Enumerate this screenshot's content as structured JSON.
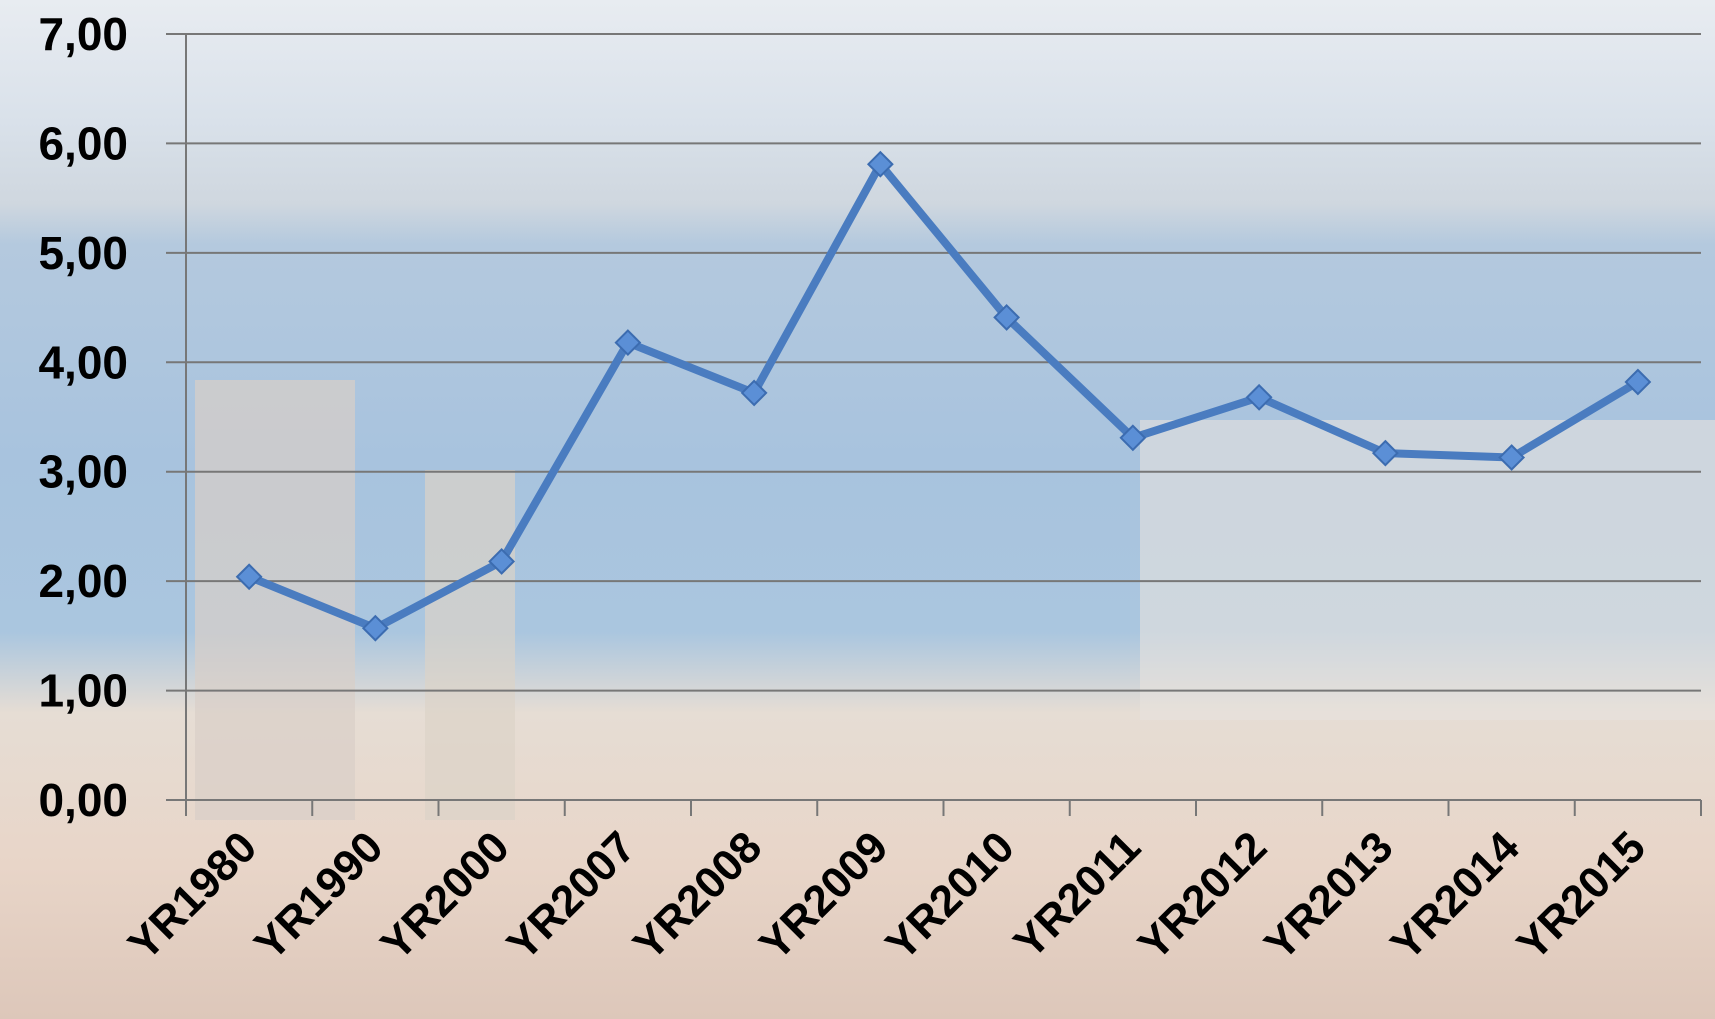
{
  "chart_data": {
    "type": "line",
    "categories": [
      "YR1980",
      "YR1990",
      "YR2000",
      "YR2007",
      "YR2008",
      "YR2009",
      "YR2010",
      "YR2011",
      "YR2012",
      "YR2013",
      "YR2014",
      "YR2015"
    ],
    "series": [
      {
        "color": "#4a7cc0",
        "values": [
          2.04,
          1.57,
          2.18,
          4.18,
          3.72,
          5.81,
          4.41,
          3.31,
          3.68,
          3.17,
          3.13,
          3.82
        ]
      }
    ],
    "ylim": [
      0,
      7
    ],
    "yticks": [
      {
        "value": 0,
        "label": "0,00"
      },
      {
        "value": 1,
        "label": "1,00"
      },
      {
        "value": 2,
        "label": "2,00"
      },
      {
        "value": 3,
        "label": "3,00"
      },
      {
        "value": 4,
        "label": "4,00"
      },
      {
        "value": 5,
        "label": "5,00"
      },
      {
        "value": 6,
        "label": "6,00"
      },
      {
        "value": 7,
        "label": "7,00"
      }
    ],
    "grid": true
  }
}
